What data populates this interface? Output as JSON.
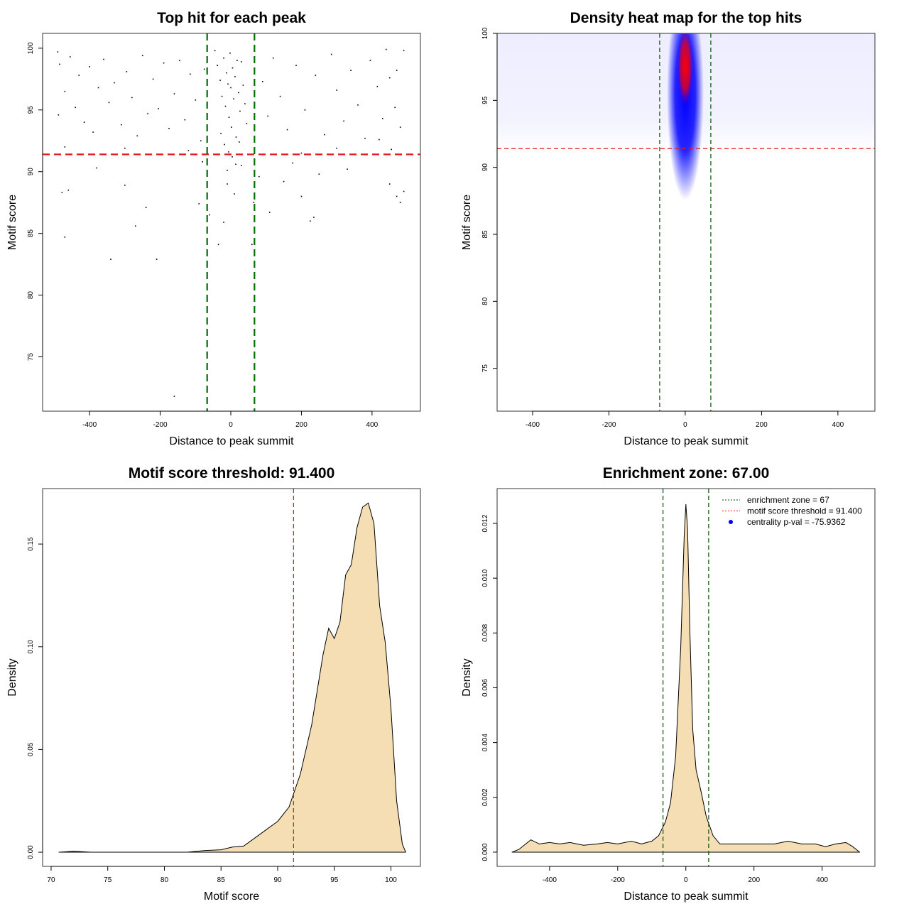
{
  "chart_data": [
    {
      "type": "scatter",
      "title": "Top hit for each peak",
      "xlabel": "Distance to peak summit",
      "ylabel": "Motif score",
      "xlim": [
        -533,
        537
      ],
      "ylim": [
        70.6,
        101.2
      ],
      "xticks": [
        -400,
        -200,
        0,
        200,
        400
      ],
      "yticks": [
        75,
        80,
        85,
        90,
        95,
        100
      ],
      "hlines": [
        {
          "y": 91.4,
          "color": "#e31a1c",
          "style": "dashed"
        }
      ],
      "vlines": [
        {
          "x": -67,
          "color": "#007000",
          "style": "dashed"
        },
        {
          "x": 67,
          "color": "#007000",
          "style": "dashed"
        }
      ],
      "point_color": "#000000",
      "points": [
        [
          -490,
          99.7
        ],
        [
          -485,
          98.7
        ],
        [
          -470,
          96.5
        ],
        [
          -455,
          99.3
        ],
        [
          -440,
          95.2
        ],
        [
          -430,
          97.8
        ],
        [
          -415,
          94.0
        ],
        [
          -400,
          98.5
        ],
        [
          -390,
          93.2
        ],
        [
          -375,
          96.8
        ],
        [
          -360,
          99.1
        ],
        [
          -345,
          95.6
        ],
        [
          -330,
          97.2
        ],
        [
          -310,
          93.8
        ],
        [
          -295,
          98.1
        ],
        [
          -280,
          96.0
        ],
        [
          -265,
          92.9
        ],
        [
          -250,
          99.4
        ],
        [
          -235,
          94.7
        ],
        [
          -220,
          97.5
        ],
        [
          -205,
          95.1
        ],
        [
          -190,
          98.8
        ],
        [
          -175,
          93.5
        ],
        [
          -160,
          96.3
        ],
        [
          -145,
          99.0
        ],
        [
          -130,
          94.2
        ],
        [
          -115,
          97.9
        ],
        [
          -100,
          95.8
        ],
        [
          -85,
          92.5
        ],
        [
          -75,
          98.3
        ],
        [
          -488,
          94.6
        ],
        [
          -478,
          88.3
        ],
        [
          -470,
          92.0
        ],
        [
          -460,
          88.5
        ],
        [
          -470,
          84.7
        ],
        [
          -380,
          90.3
        ],
        [
          -340,
          82.9
        ],
        [
          -300,
          88.9
        ],
        [
          -270,
          85.6
        ],
        [
          -240,
          87.1
        ],
        [
          -210,
          82.9
        ],
        [
          -160,
          71.8
        ],
        [
          -90,
          87.4
        ],
        [
          -80,
          90.8
        ],
        [
          -60,
          86.5
        ],
        [
          -35,
          84.1
        ],
        [
          -20,
          85.9
        ],
        [
          -10,
          89.0
        ],
        [
          10,
          88.2
        ],
        [
          30,
          90.5
        ],
        [
          60,
          84.1
        ],
        [
          65,
          87.5
        ],
        [
          80,
          89.6
        ],
        [
          110,
          86.7
        ],
        [
          150,
          89.2
        ],
        [
          175,
          90.7
        ],
        [
          200,
          88.0
        ],
        [
          225,
          86.0
        ],
        [
          235,
          86.3
        ],
        [
          250,
          89.8
        ],
        [
          330,
          90.2
        ],
        [
          450,
          89.0
        ],
        [
          470,
          88.0
        ],
        [
          480,
          87.5
        ],
        [
          490,
          88.4
        ],
        [
          -45,
          99.8
        ],
        [
          -38,
          98.6
        ],
        [
          -30,
          97.4
        ],
        [
          -25,
          96.1
        ],
        [
          -20,
          99.2
        ],
        [
          -15,
          95.3
        ],
        [
          -12,
          98.0
        ],
        [
          -8,
          97.1
        ],
        [
          -5,
          94.4
        ],
        [
          -2,
          99.6
        ],
        [
          0,
          96.8
        ],
        [
          2,
          93.6
        ],
        [
          5,
          98.4
        ],
        [
          8,
          95.9
        ],
        [
          12,
          97.7
        ],
        [
          15,
          92.8
        ],
        [
          18,
          99.0
        ],
        [
          22,
          96.4
        ],
        [
          26,
          94.9
        ],
        [
          30,
          98.9
        ],
        [
          35,
          97.0
        ],
        [
          40,
          95.5
        ],
        [
          -28,
          93.1
        ],
        [
          -18,
          92.2
        ],
        [
          -6,
          91.6
        ],
        [
          4,
          91.2
        ],
        [
          14,
          90.6
        ],
        [
          24,
          92.4
        ],
        [
          -10,
          90.1
        ],
        [
          45,
          93.9
        ],
        [
          90,
          97.3
        ],
        [
          105,
          94.5
        ],
        [
          120,
          99.2
        ],
        [
          140,
          96.1
        ],
        [
          160,
          93.4
        ],
        [
          185,
          98.6
        ],
        [
          210,
          95.0
        ],
        [
          240,
          97.8
        ],
        [
          265,
          93.0
        ],
        [
          285,
          99.5
        ],
        [
          300,
          96.6
        ],
        [
          320,
          94.1
        ],
        [
          340,
          98.2
        ],
        [
          360,
          95.4
        ],
        [
          380,
          92.7
        ],
        [
          395,
          99.0
        ],
        [
          415,
          96.9
        ],
        [
          430,
          94.3
        ],
        [
          450,
          97.6
        ],
        [
          465,
          95.2
        ],
        [
          480,
          93.6
        ],
        [
          490,
          99.8
        ],
        [
          470,
          98.2
        ],
        [
          455,
          91.8
        ],
        [
          440,
          99.9
        ],
        [
          420,
          92.6
        ],
        [
          300,
          91.9
        ],
        [
          200,
          91.5
        ],
        [
          -120,
          91.7
        ],
        [
          -300,
          91.9
        ]
      ]
    },
    {
      "type": "heatmap",
      "title": "Density heat map for the top hits",
      "xlabel": "Distance to peak summit",
      "ylabel": "Motif score",
      "xlim": [
        -493,
        497
      ],
      "ylim": [
        71.8,
        100
      ],
      "xticks": [
        -400,
        -200,
        0,
        200,
        400
      ],
      "yticks": [
        75,
        80,
        85,
        90,
        95,
        100
      ],
      "hlines": [
        {
          "y": 91.4,
          "color": "#e31a1c",
          "style": "dashed"
        }
      ],
      "vlines": [
        {
          "x": -67,
          "color": "#005000",
          "style": "dashed"
        },
        {
          "x": 67,
          "color": "#005000",
          "style": "dashed"
        }
      ],
      "colors": [
        "#ffffff",
        "#0000ff",
        "#ff0000"
      ],
      "density_peak": {
        "x": 0,
        "y": 97.5
      }
    },
    {
      "type": "area",
      "title": "Motif score threshold: 91.400",
      "xlabel": "Motif score",
      "ylabel": "Density",
      "xlim": [
        69.25,
        102.6
      ],
      "ylim": [
        -0.0069,
        0.177
      ],
      "xticks": [
        70,
        75,
        80,
        85,
        90,
        95,
        100
      ],
      "yticks": [
        0.0,
        0.05,
        0.1,
        0.15
      ],
      "ytick_labels": [
        "0.00",
        "0.05",
        "0.10",
        "0.15"
      ],
      "fill": "#f5deb3",
      "vlines": [
        {
          "x": 91.4,
          "color": "#b22222",
          "style": "dashed"
        }
      ],
      "x": [
        70.7,
        72,
        73.5,
        75,
        82,
        83.5,
        85,
        86,
        87,
        88,
        89,
        90,
        91,
        92,
        93,
        94,
        94.5,
        95,
        95.5,
        96,
        96.5,
        97,
        97.5,
        98,
        98.5,
        99,
        99.5,
        100,
        100.5,
        101,
        101.3
      ],
      "y": [
        0,
        0.0005,
        0,
        0,
        0,
        0.0008,
        0.0012,
        0.0025,
        0.003,
        0.007,
        0.011,
        0.015,
        0.022,
        0.038,
        0.062,
        0.096,
        0.109,
        0.104,
        0.112,
        0.135,
        0.14,
        0.158,
        0.168,
        0.17,
        0.16,
        0.12,
        0.102,
        0.07,
        0.025,
        0.004,
        0
      ]
    },
    {
      "type": "area",
      "title": "Enrichment zone: 67.00",
      "xlabel": "Distance to peak summit",
      "ylabel": "Density",
      "xlim": [
        -554,
        555
      ],
      "ylim": [
        -0.00052,
        0.01327
      ],
      "xticks": [
        -400,
        -200,
        0,
        200,
        400
      ],
      "yticks": [
        0.0,
        0.002,
        0.004,
        0.006,
        0.008,
        0.01,
        0.012
      ],
      "ytick_labels": [
        "0.000",
        "0.002",
        "0.004",
        "0.006",
        "0.008",
        "0.010",
        "0.012"
      ],
      "fill": "#f5deb3",
      "vlines": [
        {
          "x": -67,
          "color": "#005000",
          "style": "dashed"
        },
        {
          "x": 67,
          "color": "#005000",
          "style": "dashed"
        }
      ],
      "x": [
        -510,
        -490,
        -470,
        -455,
        -430,
        -400,
        -370,
        -340,
        -300,
        -260,
        -230,
        -200,
        -160,
        -130,
        -100,
        -80,
        -60,
        -45,
        -30,
        -15,
        -5,
        0,
        5,
        12,
        20,
        30,
        45,
        60,
        80,
        100,
        140,
        200,
        260,
        300,
        340,
        380,
        410,
        440,
        470,
        490,
        510
      ],
      "y": [
        0,
        0.0001,
        0.0003,
        0.00045,
        0.0003,
        0.00035,
        0.0003,
        0.00035,
        0.00025,
        0.0003,
        0.00035,
        0.0003,
        0.0004,
        0.0003,
        0.0004,
        0.0006,
        0.0011,
        0.0018,
        0.0035,
        0.0075,
        0.0115,
        0.0127,
        0.0118,
        0.008,
        0.0045,
        0.003,
        0.0022,
        0.0013,
        0.0006,
        0.0003,
        0.0003,
        0.0003,
        0.0003,
        0.0004,
        0.0003,
        0.0003,
        0.0002,
        0.0003,
        0.00035,
        0.0002,
        0
      ],
      "legend": {
        "placement": "top-right",
        "entries": [
          {
            "label": "enrichment zone = 67",
            "color": "#005000",
            "symbol": "dotted-line"
          },
          {
            "label": "motif score threshold = 91.400",
            "color": "#ff0000",
            "symbol": "dotted-line"
          },
          {
            "label": "centrality p-val = -75.9362",
            "color": "#0000ff",
            "symbol": "dot"
          }
        ]
      }
    }
  ]
}
